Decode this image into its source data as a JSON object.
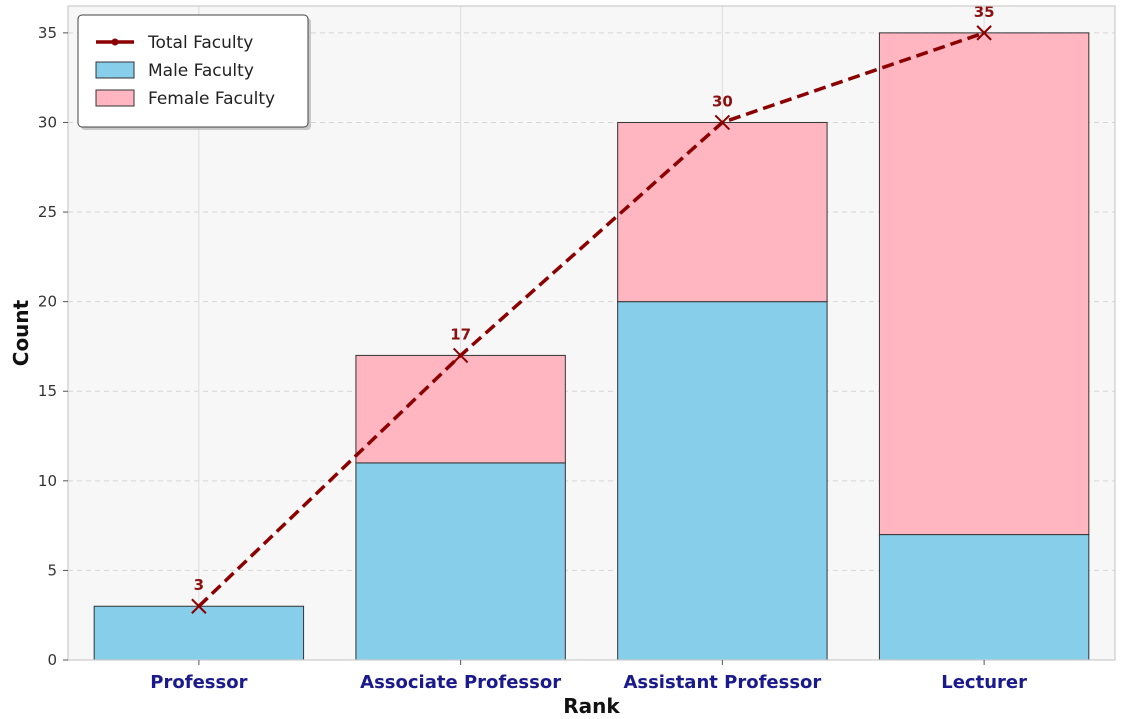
{
  "chart_data": {
    "type": "bar",
    "stacked": true,
    "categories": [
      "Professor",
      "Associate Professor",
      "Assistant Professor",
      "Lecturer"
    ],
    "series": [
      {
        "name": "Male Faculty",
        "kind": "bar",
        "values": [
          3,
          11,
          20,
          7
        ],
        "color": "#87ceeb"
      },
      {
        "name": "Female Faculty",
        "kind": "bar",
        "values": [
          0,
          6,
          10,
          28
        ],
        "color": "#ffb6c1"
      },
      {
        "name": "Total Faculty",
        "kind": "line",
        "values": [
          3,
          17,
          30,
          35
        ],
        "color": "#8b0000"
      }
    ],
    "data_labels": [
      "3",
      "17",
      "30",
      "35"
    ],
    "title": "",
    "xlabel": "Rank",
    "ylabel": "Count",
    "ylim": [
      0,
      36.5
    ],
    "yticks": [
      0,
      5,
      10,
      15,
      20,
      25,
      30,
      35
    ],
    "grid": true,
    "legend_position": "top-left"
  }
}
